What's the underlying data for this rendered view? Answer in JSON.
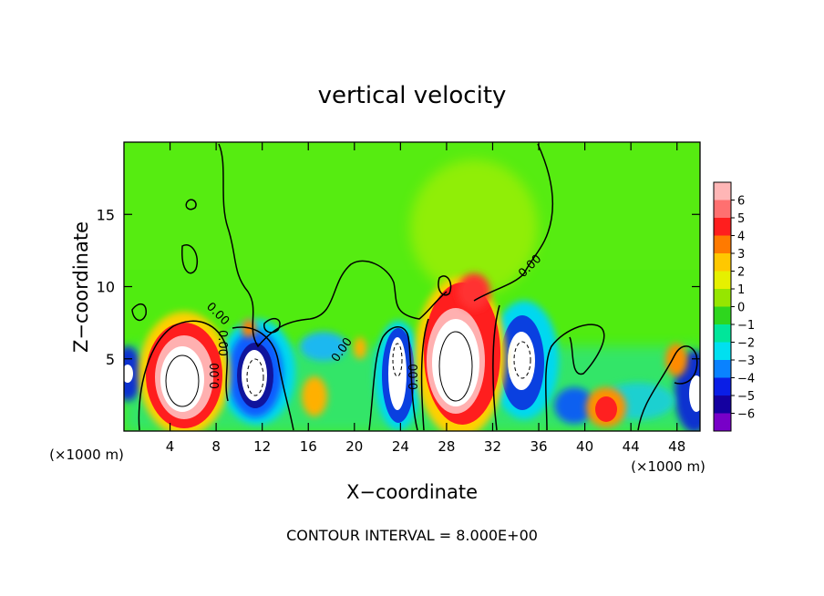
{
  "chart_data": {
    "type": "heatmap",
    "title": "vertical velocity",
    "xlabel": "X−coordinate",
    "ylabel": "Z−coordinate",
    "x_unit_left": "(×1000 m)",
    "x_unit_right": "(×1000 m)",
    "footer": "CONTOUR INTERVAL = 8.000E+00",
    "xlim": [
      0,
      50
    ],
    "ylim": [
      0,
      20
    ],
    "x_ticks": [
      4,
      8,
      12,
      16,
      20,
      24,
      28,
      32,
      36,
      40,
      44,
      48
    ],
    "x_tick_labels": [
      "4",
      "8",
      "12",
      "16",
      "20",
      "24",
      "28",
      "32",
      "36",
      "40",
      "44",
      "48"
    ],
    "y_ticks": [
      5,
      10,
      15
    ],
    "y_tick_labels": [
      "5",
      "10",
      "15"
    ],
    "colorbar": {
      "range": [
        -6,
        6
      ],
      "labels": [
        "6",
        "5",
        "4",
        "3",
        "2",
        "1",
        "0",
        "−1",
        "−2",
        "−3",
        "−4",
        "−5",
        "−6"
      ],
      "colors": [
        "#ffb6b6",
        "#ff7070",
        "#ff1e1e",
        "#ff7a00",
        "#ffc800",
        "#e6f000",
        "#96e600",
        "#2ed61e",
        "#00e69a",
        "#00e0f0",
        "#0a82ff",
        "#0a1ee6",
        "#1400a0",
        "#7800c8"
      ]
    },
    "contour_labels": [
      "0.00",
      "0.00",
      "0.00",
      "0.00",
      "0.00",
      "0.00"
    ],
    "features": [
      {
        "kind": "updraft",
        "x": 5.6,
        "z": 3.6,
        "peak": 8
      },
      {
        "kind": "updraft",
        "x": 28.8,
        "z": 5.2,
        "peak": 8
      },
      {
        "kind": "updraft",
        "x": 29.8,
        "z": 8.6,
        "peak": 4
      },
      {
        "kind": "updraft",
        "x": 42,
        "z": 1.6,
        "peak": 4
      },
      {
        "kind": "updraft",
        "x": 16.5,
        "z": 2.5,
        "peak": 2.5
      },
      {
        "kind": "updraft",
        "x": 48.8,
        "z": 5.2,
        "peak": 3.5
      },
      {
        "kind": "downdraft",
        "x": 11.5,
        "z": 3.5,
        "peak": -8
      },
      {
        "kind": "downdraft",
        "x": 23.8,
        "z": 3.6,
        "peak": -8
      },
      {
        "kind": "downdraft",
        "x": 34.7,
        "z": 4.6,
        "peak": -8
      },
      {
        "kind": "downdraft",
        "x": 49.8,
        "z": 2.4,
        "peak": -7
      },
      {
        "kind": "downdraft",
        "x": 0.3,
        "z": 3.8,
        "peak": -7
      }
    ]
  }
}
